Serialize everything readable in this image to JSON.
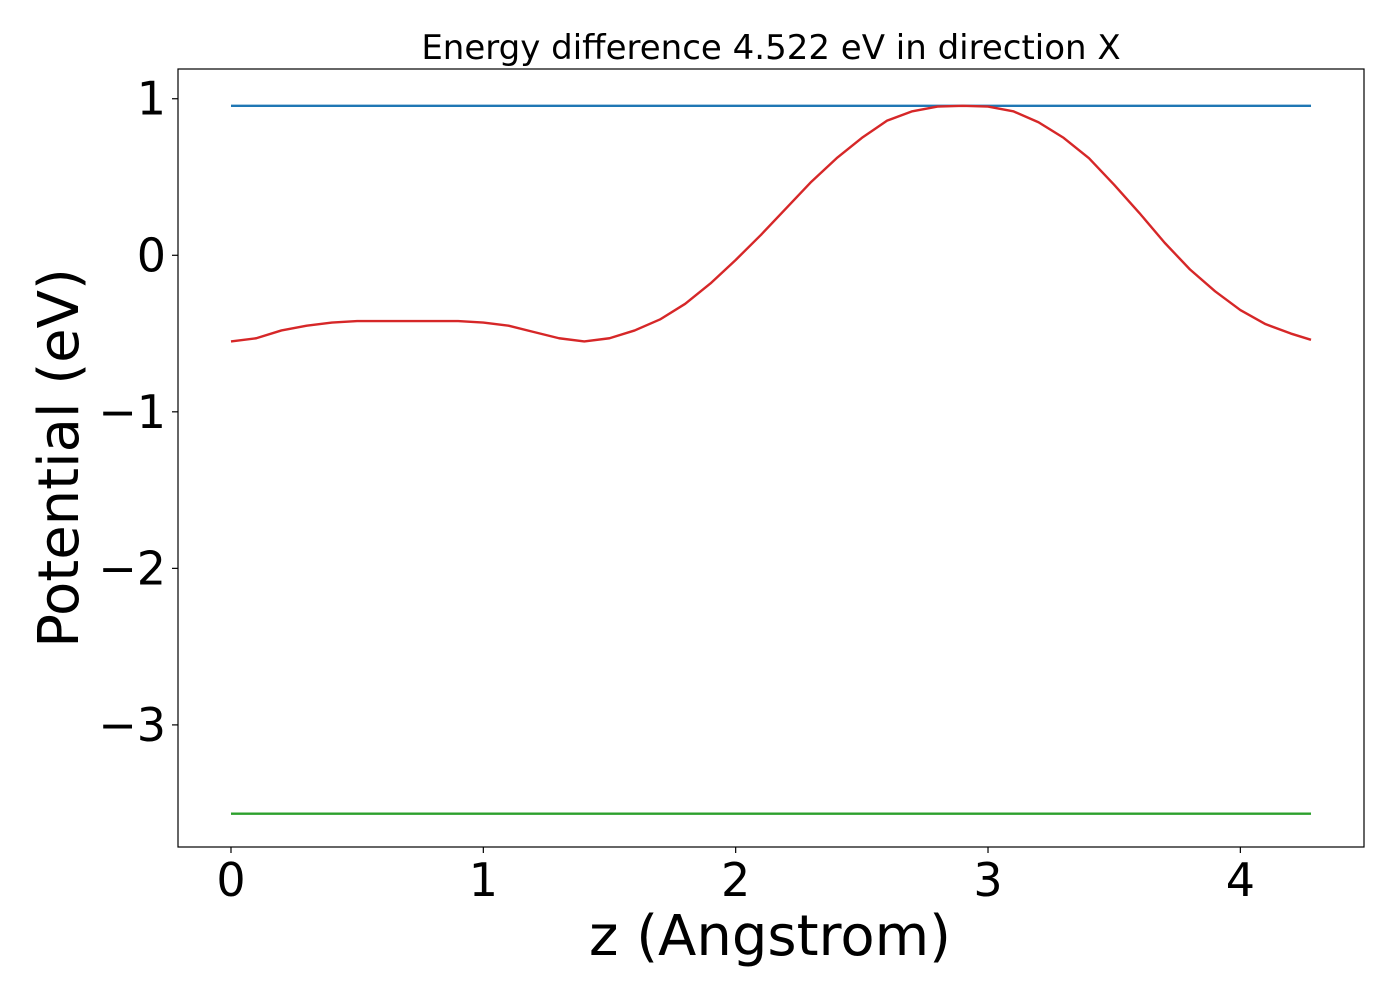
{
  "chart_data": {
    "type": "line",
    "title": "Energy difference 4.522 eV in direction X",
    "xlabel": "z (Angstrom)",
    "ylabel": "Potential (eV)",
    "xlim": [
      -0.21,
      4.49
    ],
    "ylim": [
      -3.78,
      1.19
    ],
    "xticks": [
      0,
      1,
      2,
      3,
      4
    ],
    "xtick_labels": [
      "0",
      "1",
      "2",
      "3",
      "4"
    ],
    "yticks": [
      1,
      0,
      -1,
      -2,
      -3
    ],
    "ytick_labels": [
      "1",
      "0",
      "−1",
      "−2",
      "−3"
    ],
    "grid": false,
    "series": [
      {
        "color": "#1f77b4",
        "x": [
          0,
          4.28
        ],
        "y": [
          0.955,
          0.955
        ]
      },
      {
        "color": "#2ca02c",
        "x": [
          0,
          4.28
        ],
        "y": [
          -3.567,
          -3.567
        ]
      },
      {
        "color": "#d62728",
        "x": [
          0,
          0.1,
          0.2,
          0.3,
          0.4,
          0.5,
          0.6,
          0.7,
          0.8,
          0.9,
          1.0,
          1.1,
          1.2,
          1.3,
          1.4,
          1.5,
          1.6,
          1.7,
          1.8,
          1.9,
          2.0,
          2.1,
          2.2,
          2.3,
          2.4,
          2.5,
          2.6,
          2.7,
          2.8,
          2.9,
          3.0,
          3.1,
          3.2,
          3.3,
          3.4,
          3.5,
          3.6,
          3.7,
          3.8,
          3.9,
          4.0,
          4.1,
          4.2,
          4.28
        ],
        "y": [
          -0.55,
          -0.53,
          -0.48,
          -0.45,
          -0.43,
          -0.42,
          -0.42,
          -0.42,
          -0.42,
          -0.42,
          -0.43,
          -0.45,
          -0.49,
          -0.53,
          -0.55,
          -0.53,
          -0.48,
          -0.41,
          -0.31,
          -0.18,
          -0.03,
          0.13,
          0.3,
          0.47,
          0.62,
          0.75,
          0.86,
          0.92,
          0.95,
          0.955,
          0.95,
          0.92,
          0.85,
          0.75,
          0.62,
          0.45,
          0.27,
          0.08,
          -0.09,
          -0.23,
          -0.35,
          -0.44,
          -0.5,
          -0.54
        ]
      }
    ]
  }
}
